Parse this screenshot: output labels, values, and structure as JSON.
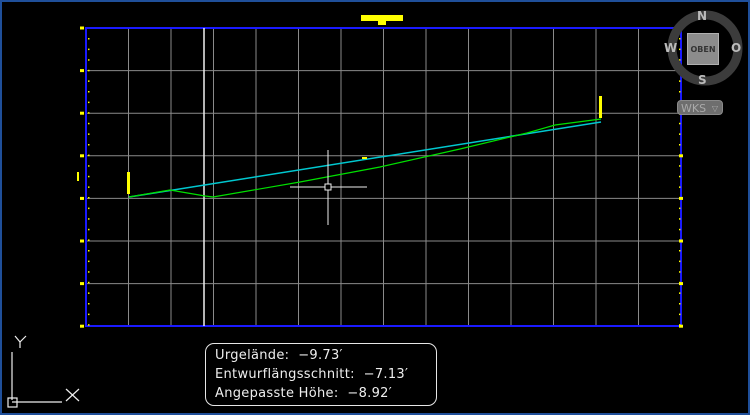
{
  "tooltip": {
    "lines": [
      {
        "label": "Urgelände:",
        "value": "−9.73′"
      },
      {
        "label": "Entwurflängsschnitt:",
        "value": "−7.13′"
      },
      {
        "label": "Angepasste Höhe:",
        "value": "−8.92′"
      }
    ]
  },
  "viewcube": {
    "top_label": "OBEN",
    "north": "N",
    "south": "S",
    "east": "O",
    "west": "W"
  },
  "ucs_menu": {
    "label": "WKS"
  },
  "ucs_icon": {
    "x_label": "X",
    "y_label": "Y"
  },
  "colors": {
    "background": "#000000",
    "grid": "#8a8a8a",
    "frame": "#1a1aff",
    "existing_ground": "#00c8d0",
    "design_profile": "#00e000",
    "markers": "#ffff00"
  }
}
